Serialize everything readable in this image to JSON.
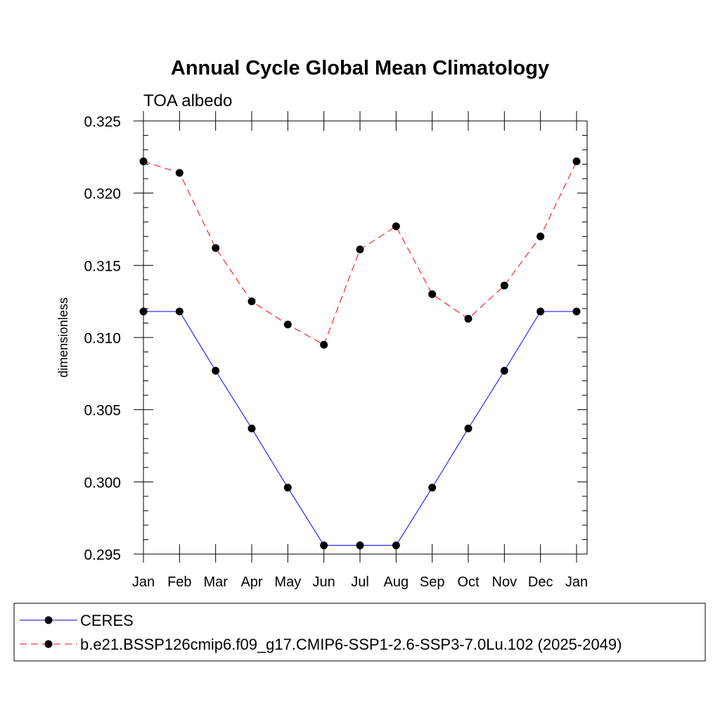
{
  "chart_data": {
    "type": "line",
    "title": "Annual Cycle Global Mean Climatology",
    "subtitle": "TOA albedo",
    "xlabel": "",
    "ylabel": "dimensionless",
    "categories": [
      "Jan",
      "Feb",
      "Mar",
      "Apr",
      "May",
      "Jun",
      "Jul",
      "Aug",
      "Sep",
      "Oct",
      "Nov",
      "Dec",
      "Jan"
    ],
    "ylim": [
      0.295,
      0.325
    ],
    "yticks": [
      "0.295",
      "0.300",
      "0.305",
      "0.310",
      "0.315",
      "0.320",
      "0.325"
    ],
    "grid": false,
    "legend_position": "bottom",
    "series": [
      {
        "name": "CERES",
        "color": "#0000ff",
        "dash": "solid",
        "values": [
          0.3118,
          0.3118,
          0.3077,
          0.3037,
          0.2996,
          0.2956,
          0.2956,
          0.2956,
          0.2996,
          0.3037,
          0.3077,
          0.3118,
          0.3118
        ]
      },
      {
        "name": "b.e21.BSSP126cmip6.f09_g17.CMIP6-SSP1-2.6-SSP3-7.0Lu.102 (2025-2049)",
        "color": "#ff0000",
        "dash": "dashed",
        "values": [
          0.3222,
          0.3214,
          0.3162,
          0.3125,
          0.3109,
          0.3095,
          0.3161,
          0.3177,
          0.313,
          0.3113,
          0.3136,
          0.317,
          0.3222
        ]
      }
    ]
  }
}
